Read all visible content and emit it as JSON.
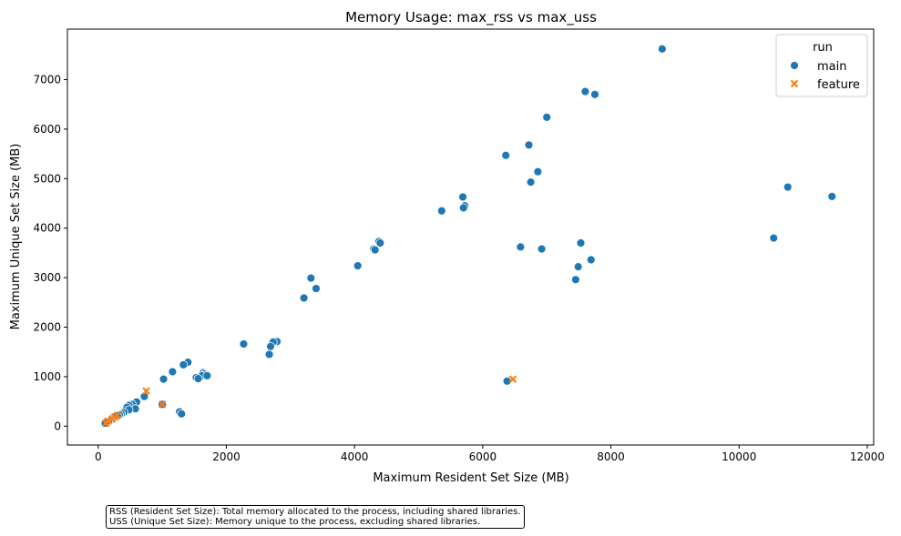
{
  "chart_data": {
    "type": "scatter",
    "title": "Memory Usage: max_rss vs max_uss",
    "xlabel": "Maximum Resident Set Size (MB)",
    "ylabel": "Maximum Unique Set Size (MB)",
    "xlim": [
      -480,
      12100
    ],
    "ylim": [
      -380,
      8020
    ],
    "xticks": [
      0,
      2000,
      4000,
      6000,
      8000,
      10000,
      12000
    ],
    "yticks": [
      0,
      1000,
      2000,
      3000,
      4000,
      5000,
      6000,
      7000
    ],
    "grid": false,
    "legend": {
      "title": "run",
      "placement": "top-right"
    },
    "series": [
      {
        "name": "main",
        "marker": "circle",
        "color": "#1f77b4",
        "points": [
          [
            8800,
            7620
          ],
          [
            7600,
            6760
          ],
          [
            7750,
            6700
          ],
          [
            7000,
            6240
          ],
          [
            6720,
            5680
          ],
          [
            6360,
            5470
          ],
          [
            6860,
            5140
          ],
          [
            6750,
            4930
          ],
          [
            10760,
            4830
          ],
          [
            11450,
            4640
          ],
          [
            5690,
            4630
          ],
          [
            5720,
            4450
          ],
          [
            5700,
            4410
          ],
          [
            5360,
            4350
          ],
          [
            10540,
            3800
          ],
          [
            4380,
            3730
          ],
          [
            4400,
            3700
          ],
          [
            7530,
            3700
          ],
          [
            6590,
            3620
          ],
          [
            4300,
            3580
          ],
          [
            4320,
            3560
          ],
          [
            6920,
            3580
          ],
          [
            7690,
            3360
          ],
          [
            4050,
            3240
          ],
          [
            7490,
            3220
          ],
          [
            3320,
            2990
          ],
          [
            7450,
            2960
          ],
          [
            3400,
            2780
          ],
          [
            3210,
            2590
          ],
          [
            2790,
            1710
          ],
          [
            2730,
            1700
          ],
          [
            2270,
            1660
          ],
          [
            2690,
            1610
          ],
          [
            2670,
            1450
          ],
          [
            1400,
            1290
          ],
          [
            1330,
            1240
          ],
          [
            1160,
            1100
          ],
          [
            1640,
            1080
          ],
          [
            1660,
            1050
          ],
          [
            1620,
            1020
          ],
          [
            1700,
            1020
          ],
          [
            1530,
            980
          ],
          [
            1560,
            960
          ],
          [
            1020,
            950
          ],
          [
            6380,
            910
          ],
          [
            720,
            600
          ],
          [
            600,
            490
          ],
          [
            530,
            440
          ],
          [
            480,
            420
          ],
          [
            1000,
            440
          ],
          [
            450,
            380
          ],
          [
            580,
            350
          ],
          [
            480,
            330
          ],
          [
            1270,
            290
          ],
          [
            1300,
            250
          ],
          [
            400,
            280
          ],
          [
            360,
            250
          ],
          [
            330,
            230
          ],
          [
            300,
            210
          ],
          [
            250,
            180
          ],
          [
            210,
            140
          ],
          [
            190,
            120
          ],
          [
            160,
            100
          ],
          [
            130,
            80
          ],
          [
            110,
            60
          ]
        ]
      },
      {
        "name": "feature",
        "marker": "x",
        "color": "#ff7f0e",
        "points": [
          [
            750,
            710
          ],
          [
            6470,
            950
          ],
          [
            1000,
            440
          ],
          [
            300,
            220
          ],
          [
            260,
            190
          ],
          [
            220,
            150
          ],
          [
            150,
            100
          ],
          [
            120,
            60
          ]
        ]
      }
    ]
  },
  "notes": {
    "line1": "RSS (Resident Set Size): Total memory allocated to the process, including shared libraries.",
    "line2": "USS (Unique Set Size): Memory unique to the process, excluding shared libraries."
  }
}
